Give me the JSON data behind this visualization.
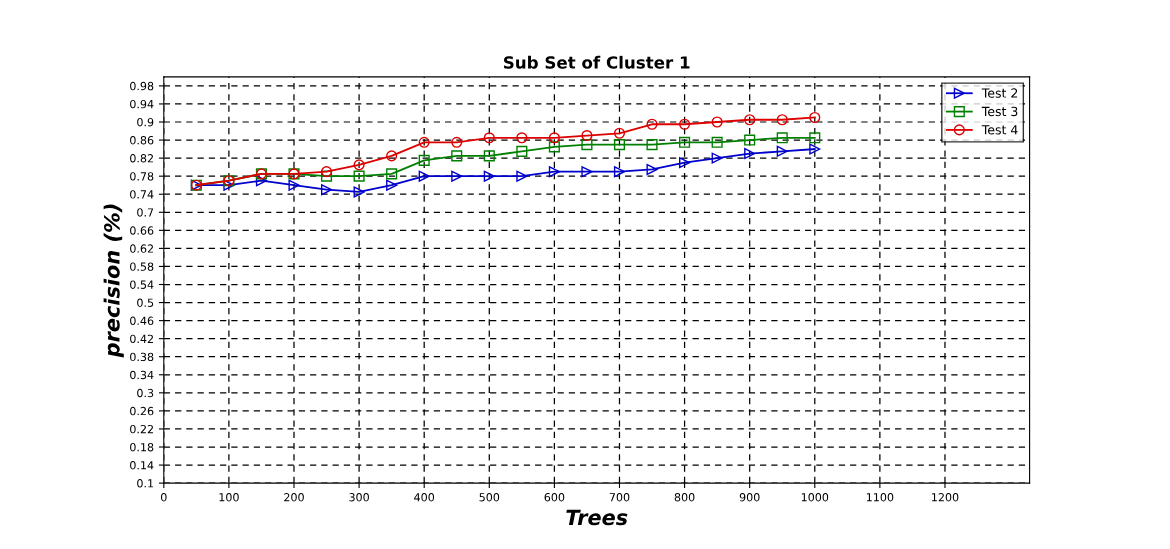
{
  "chart_data": {
    "type": "line",
    "title": "Sub Set of Cluster 1",
    "xlabel": "Trees",
    "ylabel": "precision (%)",
    "xlim": [
      0,
      1330
    ],
    "xticks": [
      0,
      100,
      200,
      300,
      400,
      500,
      600,
      700,
      800,
      900,
      1000,
      1100,
      1200
    ],
    "ylim": [
      0.1,
      1.0
    ],
    "yticks": [
      0.1,
      0.14,
      0.18,
      0.22,
      0.26,
      0.3,
      0.34,
      0.38,
      0.42,
      0.46,
      0.5,
      0.54,
      0.58,
      0.62,
      0.66,
      0.7,
      0.74,
      0.78,
      0.82,
      0.86,
      0.9,
      0.94,
      0.98
    ],
    "grid": true,
    "legend": "top right",
    "line_style": "solid",
    "x": [
      50,
      100,
      150,
      200,
      250,
      300,
      350,
      400,
      450,
      500,
      550,
      600,
      650,
      700,
      750,
      800,
      850,
      900,
      950,
      1000
    ],
    "series": [
      {
        "name": "Test 2",
        "color": "#0000cc",
        "marker": "triangle",
        "values": [
          0.76,
          0.76,
          0.77,
          0.76,
          0.75,
          0.745,
          0.76,
          0.78,
          0.78,
          0.78,
          0.78,
          0.79,
          0.79,
          0.79,
          0.795,
          0.81,
          0.82,
          0.83,
          0.835,
          0.84
        ]
      },
      {
        "name": "Test 3",
        "color": "#008000",
        "marker": "square",
        "values": [
          0.76,
          0.77,
          0.785,
          0.785,
          0.78,
          0.78,
          0.785,
          0.815,
          0.825,
          0.825,
          0.835,
          0.845,
          0.85,
          0.85,
          0.85,
          0.855,
          0.855,
          0.86,
          0.865,
          0.865
        ]
      },
      {
        "name": "Test 4",
        "color": "#dd0000",
        "marker": "circle",
        "values": [
          0.76,
          0.77,
          0.785,
          0.785,
          0.79,
          0.805,
          0.825,
          0.855,
          0.855,
          0.865,
          0.865,
          0.865,
          0.87,
          0.875,
          0.895,
          0.895,
          0.9,
          0.905,
          0.905,
          0.91
        ]
      }
    ]
  }
}
